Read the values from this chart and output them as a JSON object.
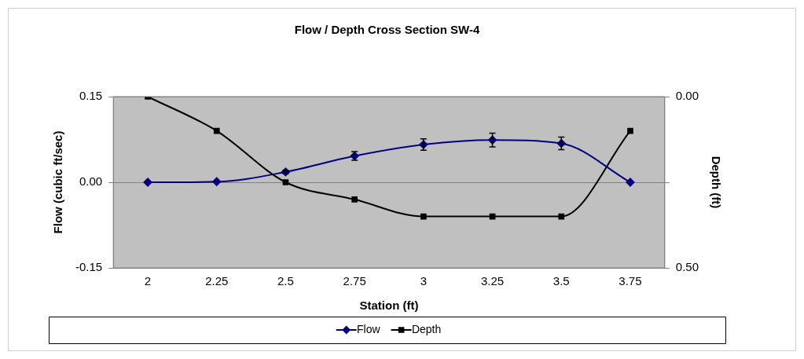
{
  "chart_data": {
    "type": "line",
    "title": "Flow / Depth Cross Section SW-4",
    "xlabel": "Station (ft)",
    "ylabel": "Flow (cubic ft/sec)",
    "y2label": "Depth (ft)",
    "categories": [
      "2",
      "2.25",
      "2.5",
      "2.75",
      "3",
      "3.25",
      "3.5",
      "3.75"
    ],
    "series": [
      {
        "name": "Flow",
        "color": "#000080",
        "marker": "diamond",
        "values": [
          0,
          0.001,
          0.018,
          0.046,
          0.066,
          0.074,
          0.068,
          0
        ],
        "errors": [
          null,
          null,
          0.003,
          0.0075,
          0.01,
          0.012,
          0.011,
          null
        ]
      },
      {
        "name": "Depth",
        "color": "#000000",
        "marker": "square",
        "axis": "y2",
        "values": [
          0,
          0.1,
          0.25,
          0.3,
          0.35,
          0.35,
          0.35,
          0.1
        ]
      }
    ],
    "ylim": [
      -0.15,
      0.15
    ],
    "yticks": [
      {
        "value": -0.15,
        "label": "-0.15"
      },
      {
        "value": 0,
        "label": "0.00"
      },
      {
        "value": 0.15,
        "label": "0.15"
      }
    ],
    "y2lim": [
      0.5,
      0
    ],
    "y2ticks": [
      {
        "value": 0,
        "label": "0.00"
      },
      {
        "value": 0.25,
        "label": null
      },
      {
        "value": 0.5,
        "label": "0.50"
      }
    ],
    "grid": "y",
    "legend": "bottom"
  }
}
